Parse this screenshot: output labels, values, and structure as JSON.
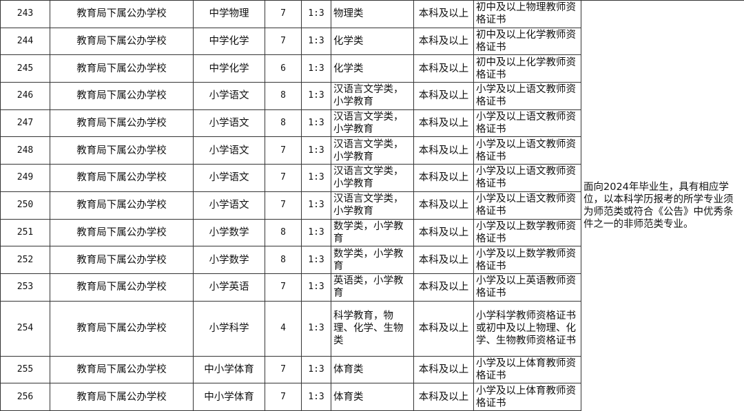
{
  "rows": [
    {
      "id": "243",
      "unit": "教育局下属公办学校",
      "subject": "中学物理",
      "count": "7",
      "ratio": "1:3",
      "major": "物理类",
      "education": "本科及以上",
      "qualification": "初中及以上物理教师资格证书"
    },
    {
      "id": "244",
      "unit": "教育局下属公办学校",
      "subject": "中学化学",
      "count": "7",
      "ratio": "1:3",
      "major": "化学类",
      "education": "本科及以上",
      "qualification": "初中及以上化学教师资格证书"
    },
    {
      "id": "245",
      "unit": "教育局下属公办学校",
      "subject": "中学化学",
      "count": "6",
      "ratio": "1:3",
      "major": "化学类",
      "education": "本科及以上",
      "qualification": "初中及以上化学教师资格证书"
    },
    {
      "id": "246",
      "unit": "教育局下属公办学校",
      "subject": "小学语文",
      "count": "8",
      "ratio": "1:3",
      "major": "汉语言文学类，小学教育",
      "education": "本科及以上",
      "qualification": "小学及以上语文教师资格证书"
    },
    {
      "id": "247",
      "unit": "教育局下属公办学校",
      "subject": "小学语文",
      "count": "8",
      "ratio": "1:3",
      "major": "汉语言文学类，小学教育",
      "education": "本科及以上",
      "qualification": "小学及以上语文教师资格证书"
    },
    {
      "id": "248",
      "unit": "教育局下属公办学校",
      "subject": "小学语文",
      "count": "7",
      "ratio": "1:3",
      "major": "汉语言文学类，小学教育",
      "education": "本科及以上",
      "qualification": "小学及以上语文教师资格证书"
    },
    {
      "id": "249",
      "unit": "教育局下属公办学校",
      "subject": "小学语文",
      "count": "7",
      "ratio": "1:3",
      "major": "汉语言文学类，小学教育",
      "education": "本科及以上",
      "qualification": "小学及以上语文教师资格证书"
    },
    {
      "id": "250",
      "unit": "教育局下属公办学校",
      "subject": "小学语文",
      "count": "7",
      "ratio": "1:3",
      "major": "汉语言文学类，小学教育",
      "education": "本科及以上",
      "qualification": "小学及以上语文教师资格证书"
    },
    {
      "id": "251",
      "unit": "教育局下属公办学校",
      "subject": "小学数学",
      "count": "8",
      "ratio": "1:3",
      "major": "数学类，小学教育",
      "education": "本科及以上",
      "qualification": "小学及以上数学教师资格证书"
    },
    {
      "id": "252",
      "unit": "教育局下属公办学校",
      "subject": "小学数学",
      "count": "8",
      "ratio": "1:3",
      "major": "数学类，小学教育",
      "education": "本科及以上",
      "qualification": "小学及以上数学教师资格证书"
    },
    {
      "id": "253",
      "unit": "教育局下属公办学校",
      "subject": "小学英语",
      "count": "7",
      "ratio": "1:3",
      "major": "英语类，小学教育",
      "education": "本科及以上",
      "qualification": "小学及以上英语教师资格证书"
    },
    {
      "id": "254",
      "unit": "教育局下属公办学校",
      "subject": "小学科学",
      "count": "4",
      "ratio": "1:3",
      "major": "科学教育，物理、化学、生物类",
      "education": "本科及以上",
      "qualification": "小学科学教师资格证书或初中及以上物理、化学、生物教师资格证书"
    },
    {
      "id": "255",
      "unit": "教育局下属公办学校",
      "subject": "中小学体育",
      "count": "7",
      "ratio": "1:3",
      "major": "体育类",
      "education": "本科及以上",
      "qualification": "小学及以上体育教师资格证书"
    },
    {
      "id": "256",
      "unit": "教育局下属公办学校",
      "subject": "中小学体育",
      "count": "7",
      "ratio": "1:3",
      "major": "体育类",
      "education": "本科及以上",
      "qualification": "小学及以上体育教师资格证书"
    }
  ],
  "note": "面向2024年毕业生，具有相应学位，以本科学历报考的所学专业须为师范类或符合《公告》中优秀条件之一的非师范类专业。"
}
